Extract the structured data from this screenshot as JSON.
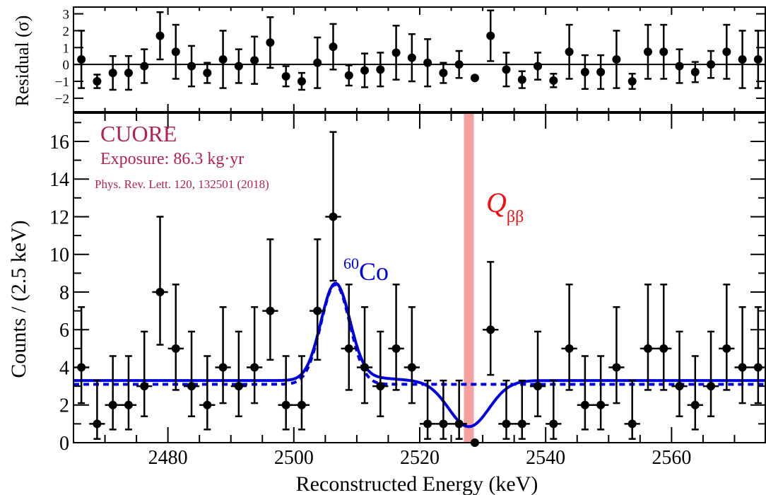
{
  "chart_data": [
    {
      "type": "scatter",
      "panel": "residual",
      "ylabel": "Residual (σ)",
      "xlim": [
        2465,
        2575
      ],
      "ylim": [
        -2.8,
        3.4
      ],
      "yticks": [
        -2,
        -1,
        0,
        1,
        2,
        3
      ],
      "ytick_labels": [
        "−2",
        "−1",
        "0",
        "1",
        "2",
        "3"
      ],
      "grid": false,
      "x": [
        2466.25,
        2468.75,
        2471.25,
        2473.75,
        2476.25,
        2478.75,
        2481.25,
        2483.75,
        2486.25,
        2488.75,
        2491.25,
        2493.75,
        2496.25,
        2498.75,
        2501.25,
        2503.75,
        2506.25,
        2508.75,
        2511.25,
        2513.75,
        2516.25,
        2518.75,
        2521.25,
        2523.75,
        2526.25,
        2528.75,
        2531.25,
        2533.75,
        2536.25,
        2538.75,
        2541.25,
        2543.75,
        2546.25,
        2548.75,
        2551.25,
        2553.75,
        2556.25,
        2558.75,
        2561.25,
        2563.75,
        2566.25,
        2568.75,
        2571.25,
        2573.75
      ],
      "y": [
        0.3,
        -1.0,
        -0.5,
        -0.5,
        -0.1,
        1.7,
        0.75,
        -0.1,
        -0.5,
        0.3,
        -0.1,
        0.25,
        1.3,
        -0.7,
        -1.0,
        0.1,
        1.05,
        -0.65,
        -0.35,
        -0.3,
        0.7,
        0.4,
        0.1,
        -0.5,
        0.0,
        -0.8,
        1.7,
        -0.3,
        -0.9,
        -0.1,
        -0.95,
        0.75,
        -0.45,
        -0.45,
        0.3,
        -1.0,
        0.75,
        0.75,
        -0.1,
        -0.45,
        0.0,
        0.75,
        0.3,
        0.3
      ],
      "yerr": [
        1.7,
        0.4,
        1.0,
        1.0,
        1.0,
        1.4,
        1.6,
        1.2,
        0.6,
        1.7,
        1.0,
        1.4,
        1.5,
        0.6,
        0.5,
        1.5,
        1.35,
        0.6,
        1.0,
        1.0,
        1.6,
        1.4,
        1.4,
        0.6,
        0.8,
        0.0,
        1.5,
        1.0,
        0.5,
        0.8,
        0.4,
        1.6,
        1.0,
        1.0,
        1.7,
        0.45,
        1.6,
        1.6,
        1.0,
        0.6,
        0.8,
        1.6,
        1.7,
        1.7
      ],
      "reference_line_y": 0
    },
    {
      "type": "scatter",
      "panel": "spectrum",
      "xlabel": "Reconstructed Energy (keV)",
      "ylabel": "Counts / (2.5 keV)",
      "xlim": [
        2465,
        2575
      ],
      "ylim": [
        0,
        17.5
      ],
      "xticks": [
        2480,
        2500,
        2520,
        2540,
        2560
      ],
      "yticks": [
        0,
        2,
        4,
        6,
        8,
        10,
        12,
        14,
        16
      ],
      "grid": false,
      "bin_width": 2.5,
      "x": [
        2466.25,
        2468.75,
        2471.25,
        2473.75,
        2476.25,
        2478.75,
        2481.25,
        2483.75,
        2486.25,
        2488.75,
        2491.25,
        2493.75,
        2496.25,
        2498.75,
        2501.25,
        2503.75,
        2506.25,
        2508.75,
        2511.25,
        2513.75,
        2516.25,
        2518.75,
        2521.25,
        2523.75,
        2526.25,
        2528.75,
        2531.25,
        2533.75,
        2536.25,
        2538.75,
        2541.25,
        2543.75,
        2546.25,
        2548.75,
        2551.25,
        2553.75,
        2556.25,
        2558.75,
        2561.25,
        2563.75,
        2566.25,
        2568.75,
        2571.25,
        2573.75
      ],
      "y": [
        4,
        1,
        2,
        2,
        3,
        8,
        5,
        3,
        2,
        4,
        3,
        4,
        7,
        2,
        2,
        7,
        12,
        5,
        4,
        3,
        5,
        4,
        1,
        1,
        1,
        0,
        6,
        1,
        1,
        3,
        1,
        5,
        2,
        2,
        4,
        1,
        5,
        5,
        3,
        2,
        3,
        5,
        4,
        4
      ],
      "yerr_low": [
        1.9,
        0.8,
        1.3,
        1.3,
        1.6,
        2.8,
        2.2,
        1.6,
        1.3,
        1.9,
        1.6,
        1.9,
        2.6,
        1.3,
        1.3,
        2.6,
        3.4,
        2.2,
        1.9,
        1.6,
        2.2,
        1.9,
        0.8,
        0.8,
        0.8,
        0,
        2.4,
        0.8,
        0.8,
        1.6,
        0.8,
        2.2,
        1.3,
        1.3,
        1.9,
        0.8,
        2.2,
        2.2,
        1.6,
        1.3,
        1.6,
        2.2,
        1.9,
        1.9
      ],
      "yerr_high": [
        3.2,
        2.3,
        2.6,
        2.6,
        2.9,
        4.0,
        3.4,
        2.9,
        2.6,
        3.2,
        2.9,
        3.2,
        3.8,
        2.6,
        2.6,
        3.8,
        4.5,
        3.4,
        3.2,
        2.9,
        3.4,
        3.2,
        2.3,
        2.3,
        2.3,
        0,
        3.6,
        2.3,
        2.3,
        2.9,
        2.3,
        3.4,
        2.6,
        2.6,
        3.2,
        2.3,
        3.4,
        3.4,
        2.9,
        2.6,
        2.9,
        3.4,
        3.2,
        3.2
      ],
      "fit_curves": {
        "color": "#0000dd",
        "solid_baseline": 3.3,
        "dashed_baseline": 3.1,
        "peak_center": 2506.6,
        "peak_height": 5.1,
        "peak_sigma": 2.3,
        "dip_center": 2527.8,
        "dip_depth": 2.45,
        "dip_sigma": 3.2
      },
      "highlight_band": {
        "x_center": 2527.8,
        "color": "#f4a0a0",
        "label": "Q",
        "label_sub": "ββ",
        "label_color": "#ee1111"
      },
      "peak_annotation": {
        "x": 2506.6,
        "sup": "60",
        "text": "Co",
        "color": "#0000dd"
      }
    }
  ],
  "legend": {
    "title": "CUORE",
    "exposure": "Exposure: 86.3 kg·yr",
    "reference": "Phys. Rev. Lett. 120, 132501 (2018)",
    "color": "#b0234d"
  }
}
